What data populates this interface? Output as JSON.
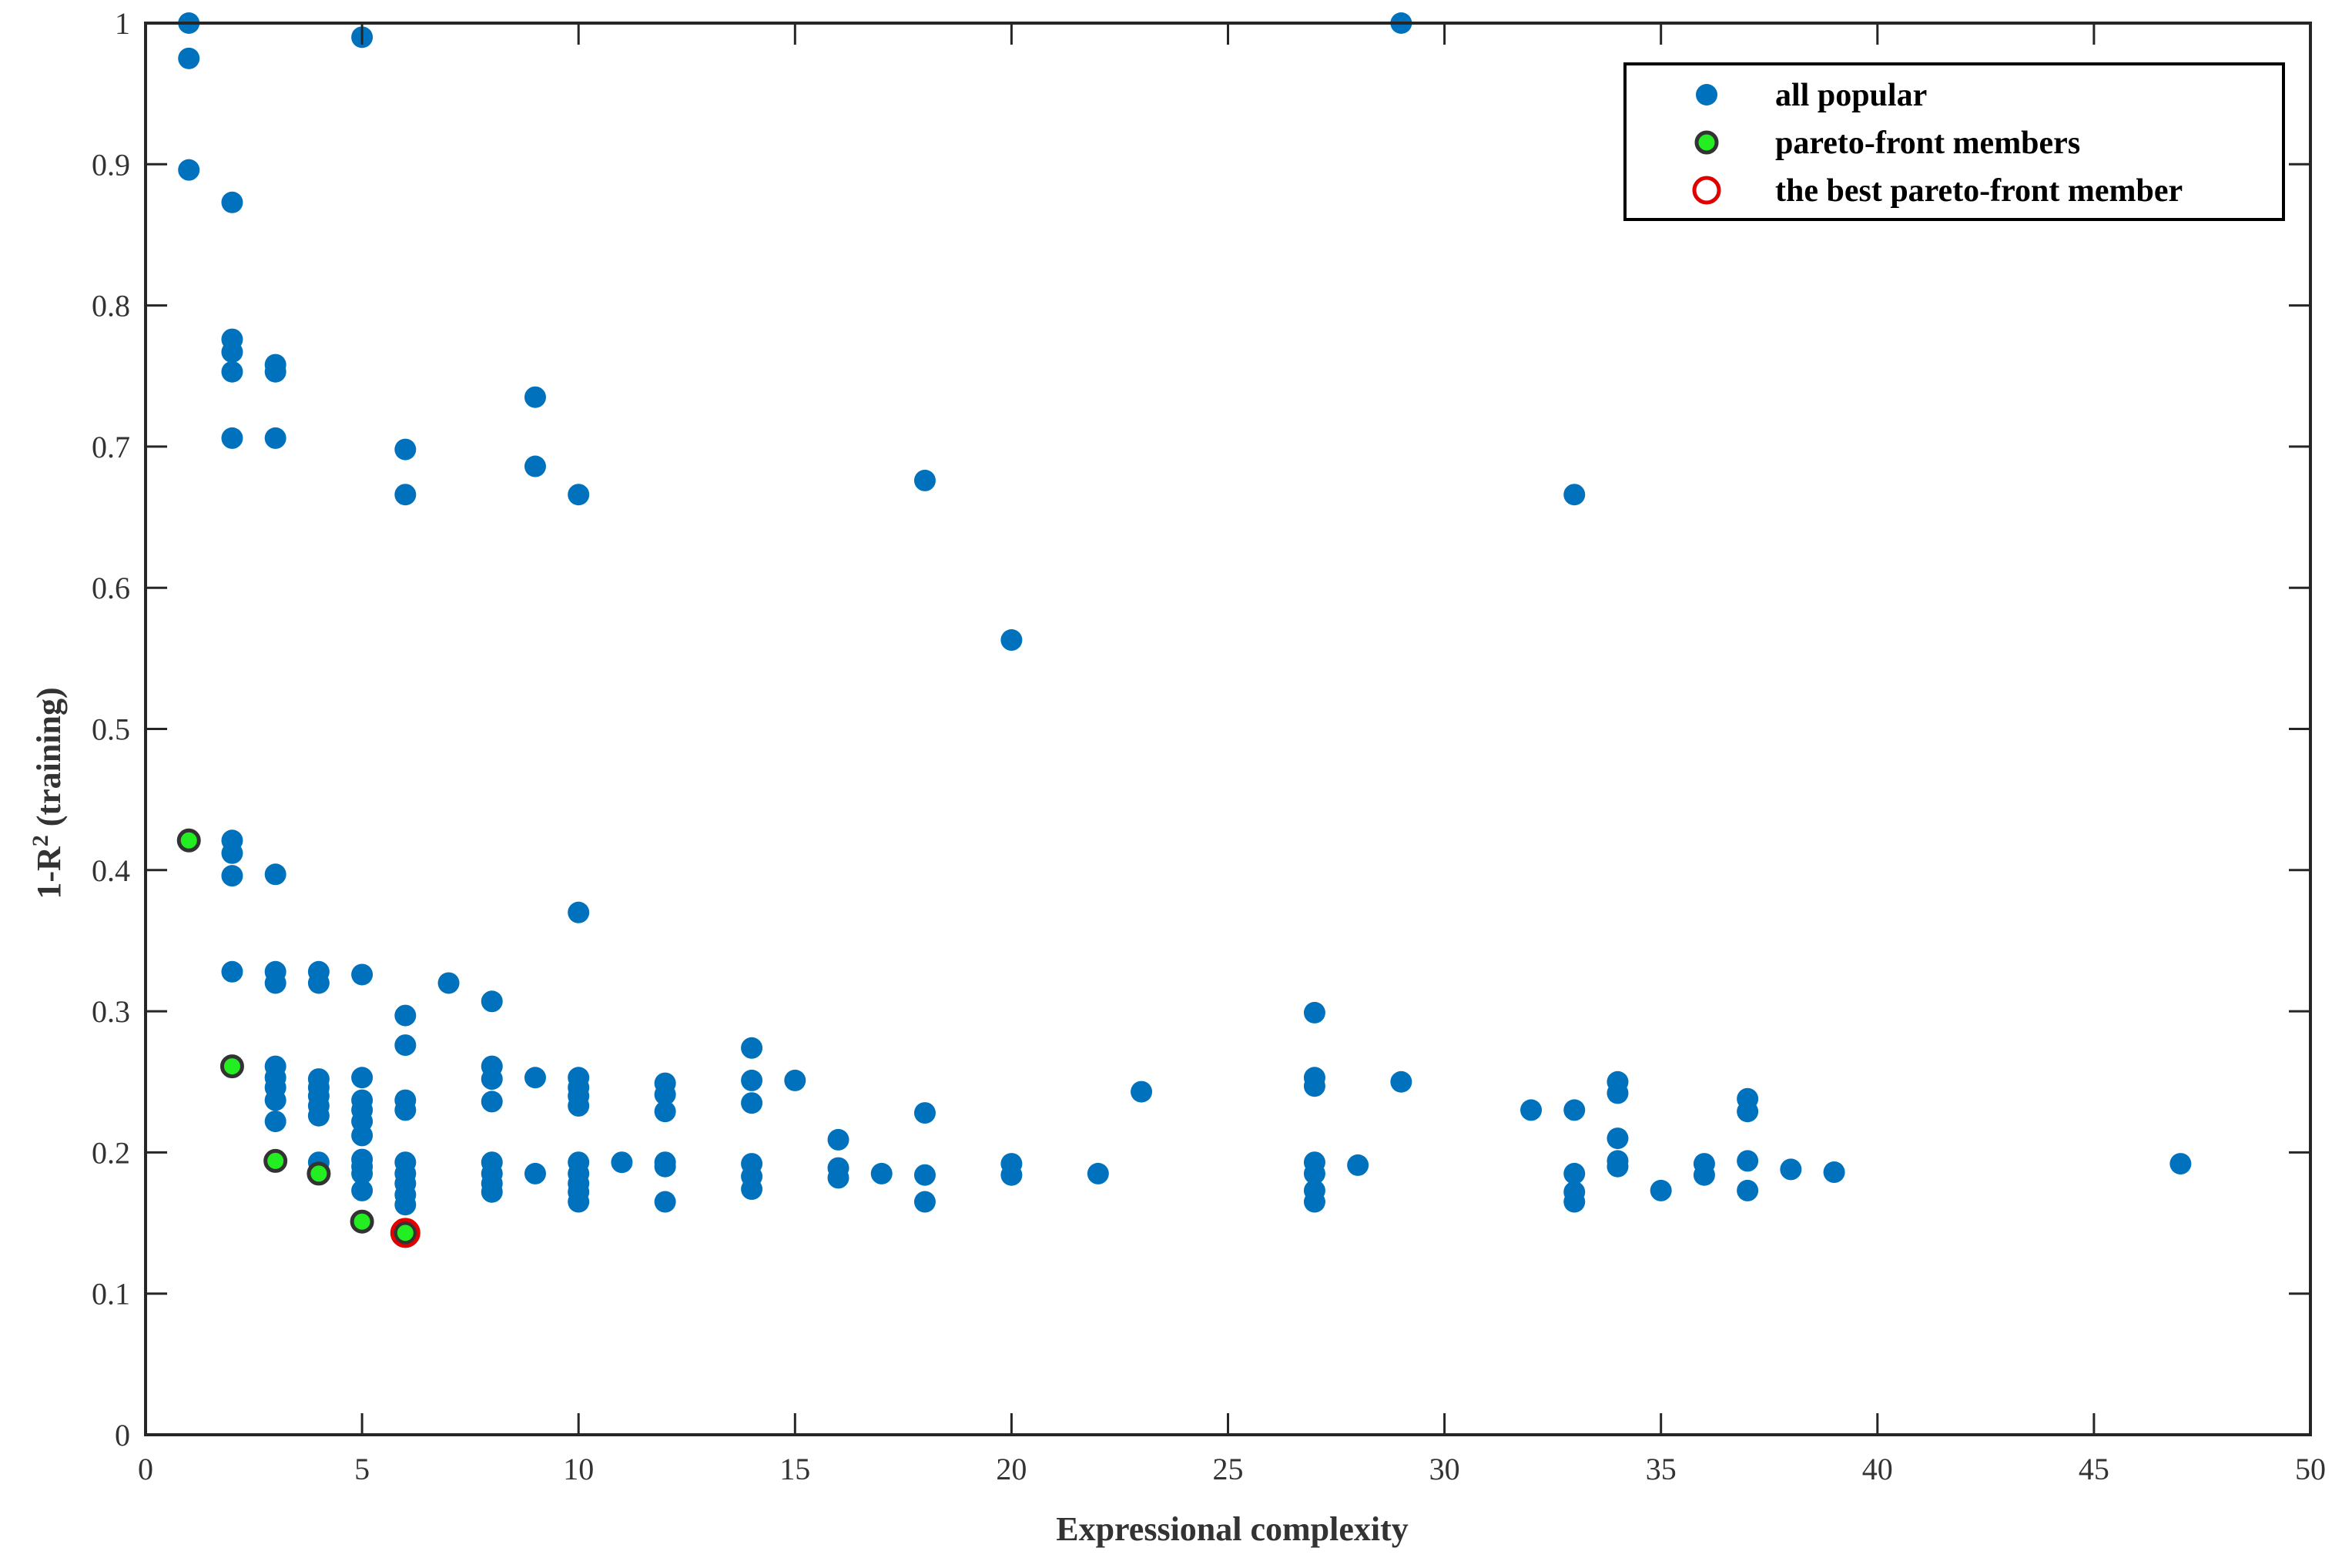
{
  "chart_data": {
    "type": "scatter",
    "xlabel": "Expressional complexity",
    "ylabel": {
      "prefix": "1-R",
      "superscript": "2",
      "suffix": " (training)"
    },
    "xlim": [
      0,
      50
    ],
    "ylim": [
      0,
      1
    ],
    "xticks": [
      "0",
      "5",
      "10",
      "15",
      "20",
      "25",
      "30",
      "35",
      "40",
      "45",
      "50"
    ],
    "yticks": [
      "0",
      "0.1",
      "0.2",
      "0.3",
      "0.4",
      "0.5",
      "0.6",
      "0.7",
      "0.8",
      "0.9",
      "1"
    ],
    "grid": false,
    "legend_position": "top-right",
    "colors": {
      "all": "#0072BD",
      "pareto_fill": "#22EE22",
      "pareto_edge": "#333333",
      "best_edge": "#E00000"
    },
    "series": [
      {
        "name": "all popular",
        "marker": "filled-circle",
        "points": [
          [
            1,
            1.0
          ],
          [
            1,
            0.975
          ],
          [
            1,
            0.896
          ],
          [
            1,
            0.421
          ],
          [
            2,
            0.873
          ],
          [
            2,
            0.776
          ],
          [
            2,
            0.767
          ],
          [
            2,
            0.753
          ],
          [
            2,
            0.706
          ],
          [
            2,
            0.421
          ],
          [
            2,
            0.412
          ],
          [
            2,
            0.396
          ],
          [
            2,
            0.328
          ],
          [
            2,
            0.261
          ],
          [
            3,
            0.758
          ],
          [
            3,
            0.753
          ],
          [
            3,
            0.706
          ],
          [
            3,
            0.397
          ],
          [
            3,
            0.328
          ],
          [
            3,
            0.32
          ],
          [
            3,
            0.261
          ],
          [
            3,
            0.253
          ],
          [
            3,
            0.246
          ],
          [
            3,
            0.237
          ],
          [
            3,
            0.222
          ],
          [
            3,
            0.194
          ],
          [
            4,
            0.328
          ],
          [
            4,
            0.32
          ],
          [
            4,
            0.252
          ],
          [
            4,
            0.246
          ],
          [
            4,
            0.24
          ],
          [
            4,
            0.233
          ],
          [
            4,
            0.226
          ],
          [
            4,
            0.193
          ],
          [
            4,
            0.185
          ],
          [
            5,
            0.99
          ],
          [
            5,
            0.326
          ],
          [
            5,
            0.253
          ],
          [
            5,
            0.237
          ],
          [
            5,
            0.23
          ],
          [
            5,
            0.222
          ],
          [
            5,
            0.212
          ],
          [
            5,
            0.195
          ],
          [
            5,
            0.19
          ],
          [
            5,
            0.185
          ],
          [
            5,
            0.173
          ],
          [
            5,
            0.151
          ],
          [
            6,
            0.698
          ],
          [
            6,
            0.666
          ],
          [
            6,
            0.297
          ],
          [
            6,
            0.276
          ],
          [
            6,
            0.237
          ],
          [
            6,
            0.23
          ],
          [
            6,
            0.193
          ],
          [
            6,
            0.185
          ],
          [
            6,
            0.178
          ],
          [
            6,
            0.17
          ],
          [
            6,
            0.163
          ],
          [
            6,
            0.143
          ],
          [
            7,
            0.32
          ],
          [
            8,
            0.307
          ],
          [
            8,
            0.261
          ],
          [
            8,
            0.252
          ],
          [
            8,
            0.236
          ],
          [
            8,
            0.193
          ],
          [
            8,
            0.185
          ],
          [
            8,
            0.178
          ],
          [
            8,
            0.172
          ],
          [
            9,
            0.735
          ],
          [
            9,
            0.686
          ],
          [
            9,
            0.253
          ],
          [
            9,
            0.185
          ],
          [
            10,
            0.666
          ],
          [
            10,
            0.37
          ],
          [
            10,
            0.253
          ],
          [
            10,
            0.246
          ],
          [
            10,
            0.24
          ],
          [
            10,
            0.233
          ],
          [
            10,
            0.193
          ],
          [
            10,
            0.185
          ],
          [
            10,
            0.178
          ],
          [
            10,
            0.172
          ],
          [
            10,
            0.165
          ],
          [
            11,
            0.193
          ],
          [
            12,
            0.249
          ],
          [
            12,
            0.241
          ],
          [
            12,
            0.229
          ],
          [
            12,
            0.193
          ],
          [
            12,
            0.19
          ],
          [
            12,
            0.165
          ],
          [
            14,
            0.274
          ],
          [
            14,
            0.251
          ],
          [
            14,
            0.235
          ],
          [
            14,
            0.192
          ],
          [
            14,
            0.183
          ],
          [
            14,
            0.174
          ],
          [
            15,
            0.251
          ],
          [
            16,
            0.209
          ],
          [
            16,
            0.189
          ],
          [
            16,
            0.182
          ],
          [
            17,
            0.185
          ],
          [
            18,
            0.676
          ],
          [
            18,
            0.228
          ],
          [
            18,
            0.184
          ],
          [
            18,
            0.165
          ],
          [
            20,
            0.563
          ],
          [
            20,
            0.192
          ],
          [
            20,
            0.184
          ],
          [
            22,
            0.185
          ],
          [
            23,
            0.243
          ],
          [
            27,
            0.299
          ],
          [
            27,
            0.253
          ],
          [
            27,
            0.247
          ],
          [
            27,
            0.193
          ],
          [
            27,
            0.185
          ],
          [
            27,
            0.173
          ],
          [
            27,
            0.165
          ],
          [
            28,
            0.191
          ],
          [
            29,
            1.0
          ],
          [
            29,
            0.25
          ],
          [
            32,
            0.23
          ],
          [
            33,
            0.666
          ],
          [
            33,
            0.23
          ],
          [
            33,
            0.185
          ],
          [
            33,
            0.172
          ],
          [
            33,
            0.165
          ],
          [
            34,
            0.25
          ],
          [
            34,
            0.242
          ],
          [
            34,
            0.21
          ],
          [
            34,
            0.194
          ],
          [
            34,
            0.19
          ],
          [
            35,
            0.173
          ],
          [
            36,
            0.192
          ],
          [
            36,
            0.184
          ],
          [
            37,
            0.238
          ],
          [
            37,
            0.229
          ],
          [
            37,
            0.194
          ],
          [
            37,
            0.173
          ],
          [
            38,
            0.188
          ],
          [
            39,
            0.186
          ],
          [
            47,
            0.192
          ]
        ]
      },
      {
        "name": "pareto-front members",
        "marker": "green-circle-dark-edge",
        "points": [
          [
            1,
            0.421
          ],
          [
            2,
            0.261
          ],
          [
            3,
            0.194
          ],
          [
            4,
            0.185
          ],
          [
            5,
            0.151
          ],
          [
            6,
            0.143
          ]
        ]
      },
      {
        "name": "the best pareto-front member",
        "marker": "red-ring",
        "points": [
          [
            6,
            0.143
          ]
        ]
      }
    ]
  }
}
